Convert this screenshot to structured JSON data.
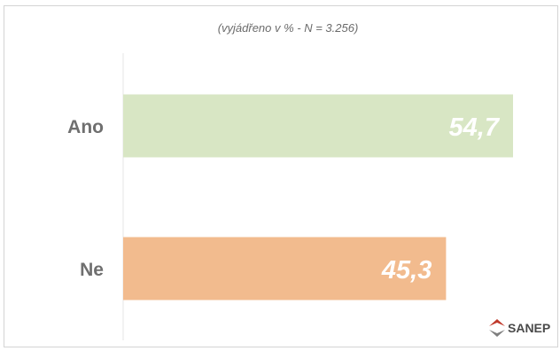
{
  "chart_data": {
    "type": "bar",
    "orientation": "horizontal",
    "subtitle": "(vyjádřeno v % - N = 3.256)",
    "categories": [
      "Ano",
      "Ne"
    ],
    "values": [
      54.7,
      45.3
    ],
    "value_labels": [
      "54,7",
      "45,3"
    ],
    "colors": [
      "#d8e6c4",
      "#f2bb8e"
    ],
    "xlim": [
      0,
      60
    ],
    "grid": false,
    "legend": "none"
  },
  "logo": {
    "text": "SANEP",
    "icon": "sanep-logo-icon",
    "colors": [
      "#c0392b",
      "#7f7f7f"
    ]
  }
}
